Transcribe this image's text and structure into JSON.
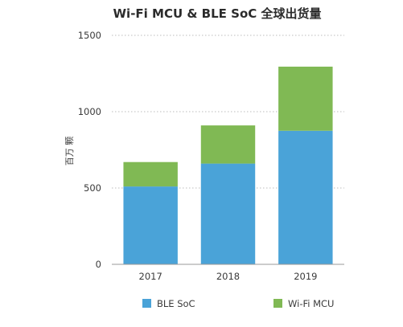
{
  "chart_data": {
    "type": "bar",
    "stacked": true,
    "title": "Wi-Fi MCU & BLE SoC 全球出货量",
    "ylabel": "百万 颗",
    "xlabel": "",
    "categories": [
      "2017",
      "2018",
      "2019"
    ],
    "series": [
      {
        "name": "BLE SoC",
        "values": [
          510,
          660,
          875
        ],
        "color": "#4aa3d8"
      },
      {
        "name": "Wi-Fi MCU",
        "values": [
          160,
          250,
          420
        ],
        "color": "#80b954"
      }
    ],
    "ylim": [
      0,
      1500
    ],
    "yticks": [
      0,
      500,
      1000,
      1500
    ],
    "grid": true,
    "legend": "bottom"
  }
}
